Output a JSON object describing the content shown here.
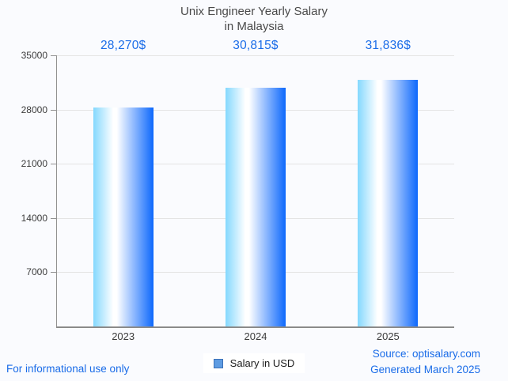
{
  "title": {
    "line1": "Unix Engineer Yearly Salary",
    "line2": "in Malaysia"
  },
  "chart_data": {
    "type": "bar",
    "title": "Unix Engineer Yearly Salary in Malaysia",
    "categories": [
      "2023",
      "2024",
      "2025"
    ],
    "values": [
      28270,
      30815,
      31836
    ],
    "value_labels": [
      "28,270$",
      "30,815$",
      "31,836$"
    ],
    "series_name": "Salary in USD",
    "xlabel": "",
    "ylabel": "",
    "ylim": [
      0,
      35000
    ],
    "yticks": [
      35000,
      28000,
      21000,
      14000,
      7000
    ],
    "ytick_labels": [
      "35000",
      "28000",
      "21000",
      "14000",
      "7000"
    ],
    "grid": true,
    "legend_position": "bottom"
  },
  "legend": {
    "label": "Salary in USD",
    "swatch_fill": "#5e9ce2",
    "swatch_border": "#3c71b8"
  },
  "footer": {
    "disclaimer": "For informational use only",
    "source_line1": "Source: optisalary.com",
    "source_line2": "Generated March 2025"
  },
  "colors": {
    "accent_blue": "#1a6ce8",
    "title_gray": "#4a4a4a",
    "axis_gray": "#8a8a8a",
    "grid_gray": "#e4e4e4",
    "tick_text": "#3c3c3c",
    "background": "#fafbfe",
    "bar_gradient": [
      "#84d8fe",
      "#ffffff",
      "#0d68fc"
    ]
  }
}
